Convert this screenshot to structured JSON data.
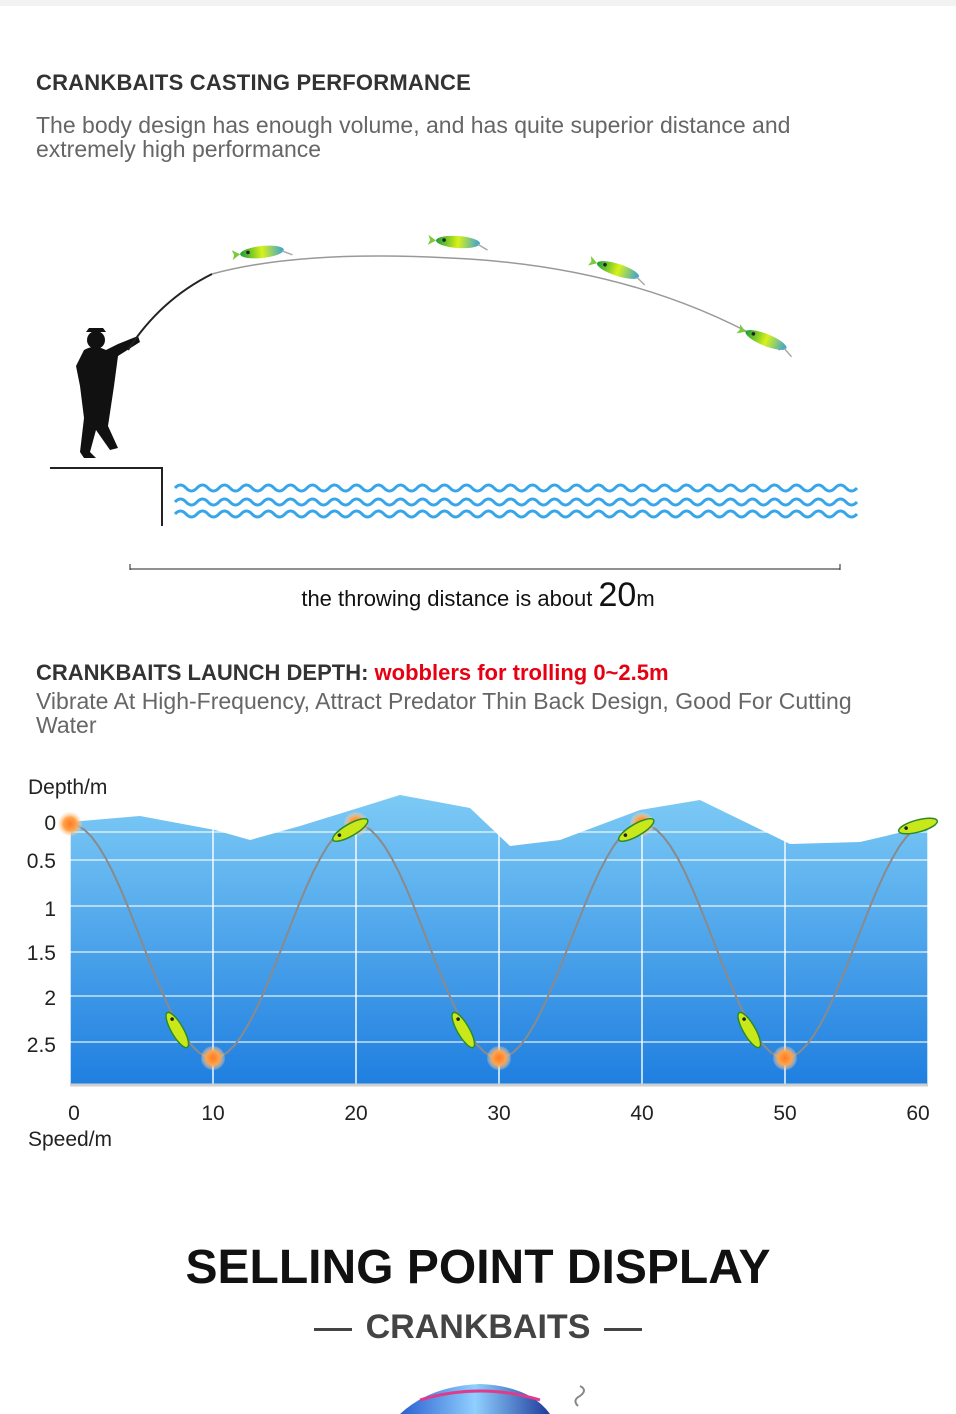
{
  "casting": {
    "title": "CRANKBAITS CASTING PERFORMANCE",
    "description": "The body design has enough volume, and has quite superior distance and extremely high performance",
    "distance_prefix": "the throwing distance is about ",
    "distance_value": "20",
    "distance_unit": "m"
  },
  "depth": {
    "title": "CRANKBAITS LAUNCH DEPTH: ",
    "title_highlight": "wobblers for trolling 0~2.5m",
    "description": "Vibrate At High-Frequency, Attract Predator Thin Back Design, Good For Cutting Water",
    "y_axis_label": "Depth/m",
    "x_axis_label": "Speed/m",
    "y_ticks": [
      "0",
      "0.5",
      "1",
      "1.5",
      "2",
      "2.5"
    ],
    "x_ticks": [
      "0",
      "10",
      "20",
      "30",
      "40",
      "50",
      "60"
    ],
    "colors": {
      "water_top": "#5bb8f0",
      "water_bottom": "#2a86e0",
      "highlight": "#e60012",
      "marker": "#ff8a30"
    }
  },
  "selling": {
    "title": "SELLING POINT DISPLAY",
    "subtitle": "CRANKBAITS"
  }
}
